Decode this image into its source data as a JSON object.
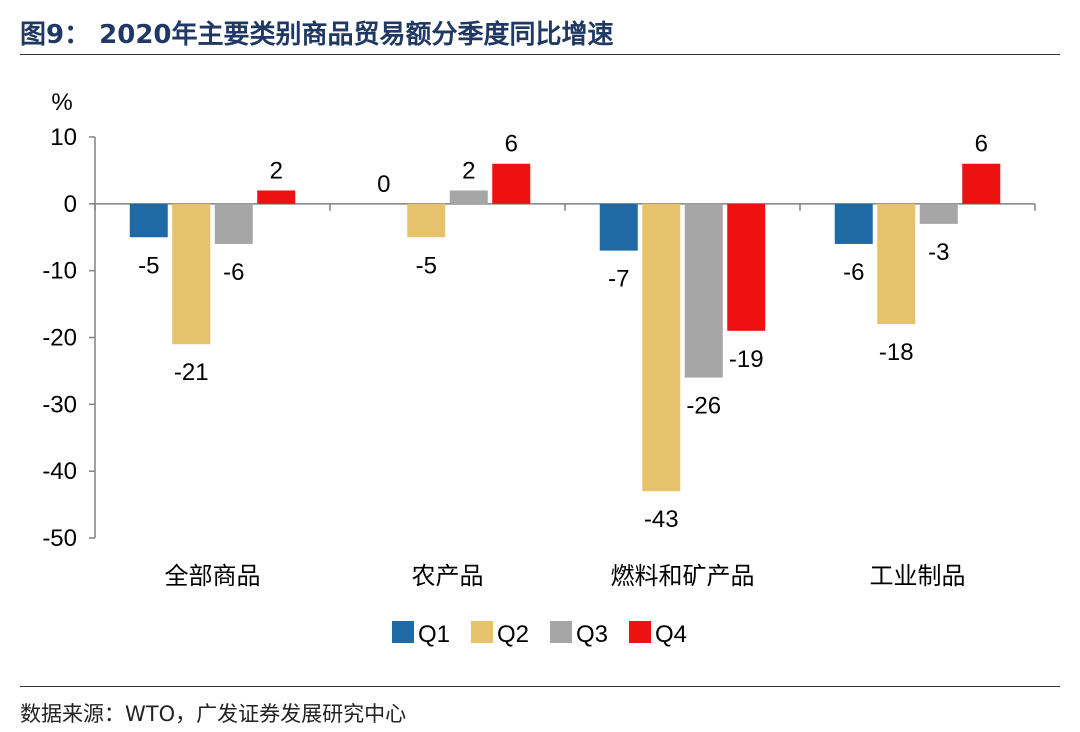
{
  "header": {
    "title": "图9：  2020年主要类别商品贸易额分季度同比增速"
  },
  "footer": {
    "source": "数据来源：WTO，广发证券发展研究中心"
  },
  "chart_data": {
    "type": "bar",
    "title": "2020年主要类别商品贸易额分季度同比增速",
    "ylabel": "%",
    "xlabel": "",
    "ylim": [
      -50,
      10
    ],
    "yticks": [
      10,
      0,
      -10,
      -20,
      -30,
      -40,
      -50
    ],
    "categories": [
      "全部商品",
      "农产品",
      "燃料和矿产品",
      "工业制品"
    ],
    "series": [
      {
        "name": "Q1",
        "color": "#1f6aa5",
        "values": [
          -5,
          0,
          -7,
          -6
        ],
        "labels": [
          "-5",
          "0",
          "-7",
          "-6"
        ]
      },
      {
        "name": "Q2",
        "color": "#e6c36a",
        "values": [
          -21,
          -5,
          -43,
          -18
        ],
        "labels": [
          "-21",
          "-5",
          "-43",
          "-18"
        ]
      },
      {
        "name": "Q3",
        "color": "#a6a6a6",
        "values": [
          -6,
          2,
          -26,
          -3
        ],
        "labels": [
          "-6",
          "2",
          "-26",
          "-3"
        ]
      },
      {
        "name": "Q4",
        "color": "#ee1111",
        "values": [
          2,
          6,
          -19,
          6
        ],
        "labels": [
          "2",
          "6",
          "-19",
          "6"
        ]
      }
    ],
    "legend_position": "bottom"
  }
}
